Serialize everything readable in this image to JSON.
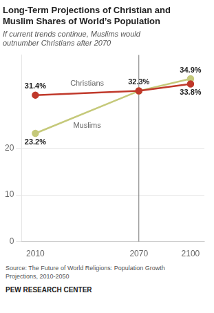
{
  "chart_data": {
    "type": "line",
    "title": [
      "Long-Term Projections of Christian and",
      "Muslim Shares of World’s Population"
    ],
    "subtitle": [
      "If current trends continue, Muslims would",
      "outnumber Christians after 2070"
    ],
    "x": [
      2010,
      2070,
      2100
    ],
    "series": [
      {
        "name": "Christians",
        "color": "#c0392b",
        "values": [
          31.4,
          32.3,
          33.8
        ],
        "value_labels": [
          "31.4%",
          "32.3%",
          "33.8%"
        ]
      },
      {
        "name": "Muslims",
        "color": "#c5c97a",
        "values": [
          23.2,
          32.3,
          34.9
        ],
        "value_labels": [
          "23.2%",
          null,
          "34.9%"
        ]
      }
    ],
    "marker": "circle",
    "xlim": [
      2002,
      2108
    ],
    "xticks": [
      2010,
      2070,
      2100
    ],
    "ylim": [
      0,
      40
    ],
    "yticks": [
      0,
      10,
      20
    ],
    "grid": true,
    "vlines": [
      2070
    ],
    "source": [
      "Source: The Future of World Religions: Population Growth",
      "Projections, 2010-2050"
    ],
    "footer": "PEW RESEARCH CENTER"
  }
}
